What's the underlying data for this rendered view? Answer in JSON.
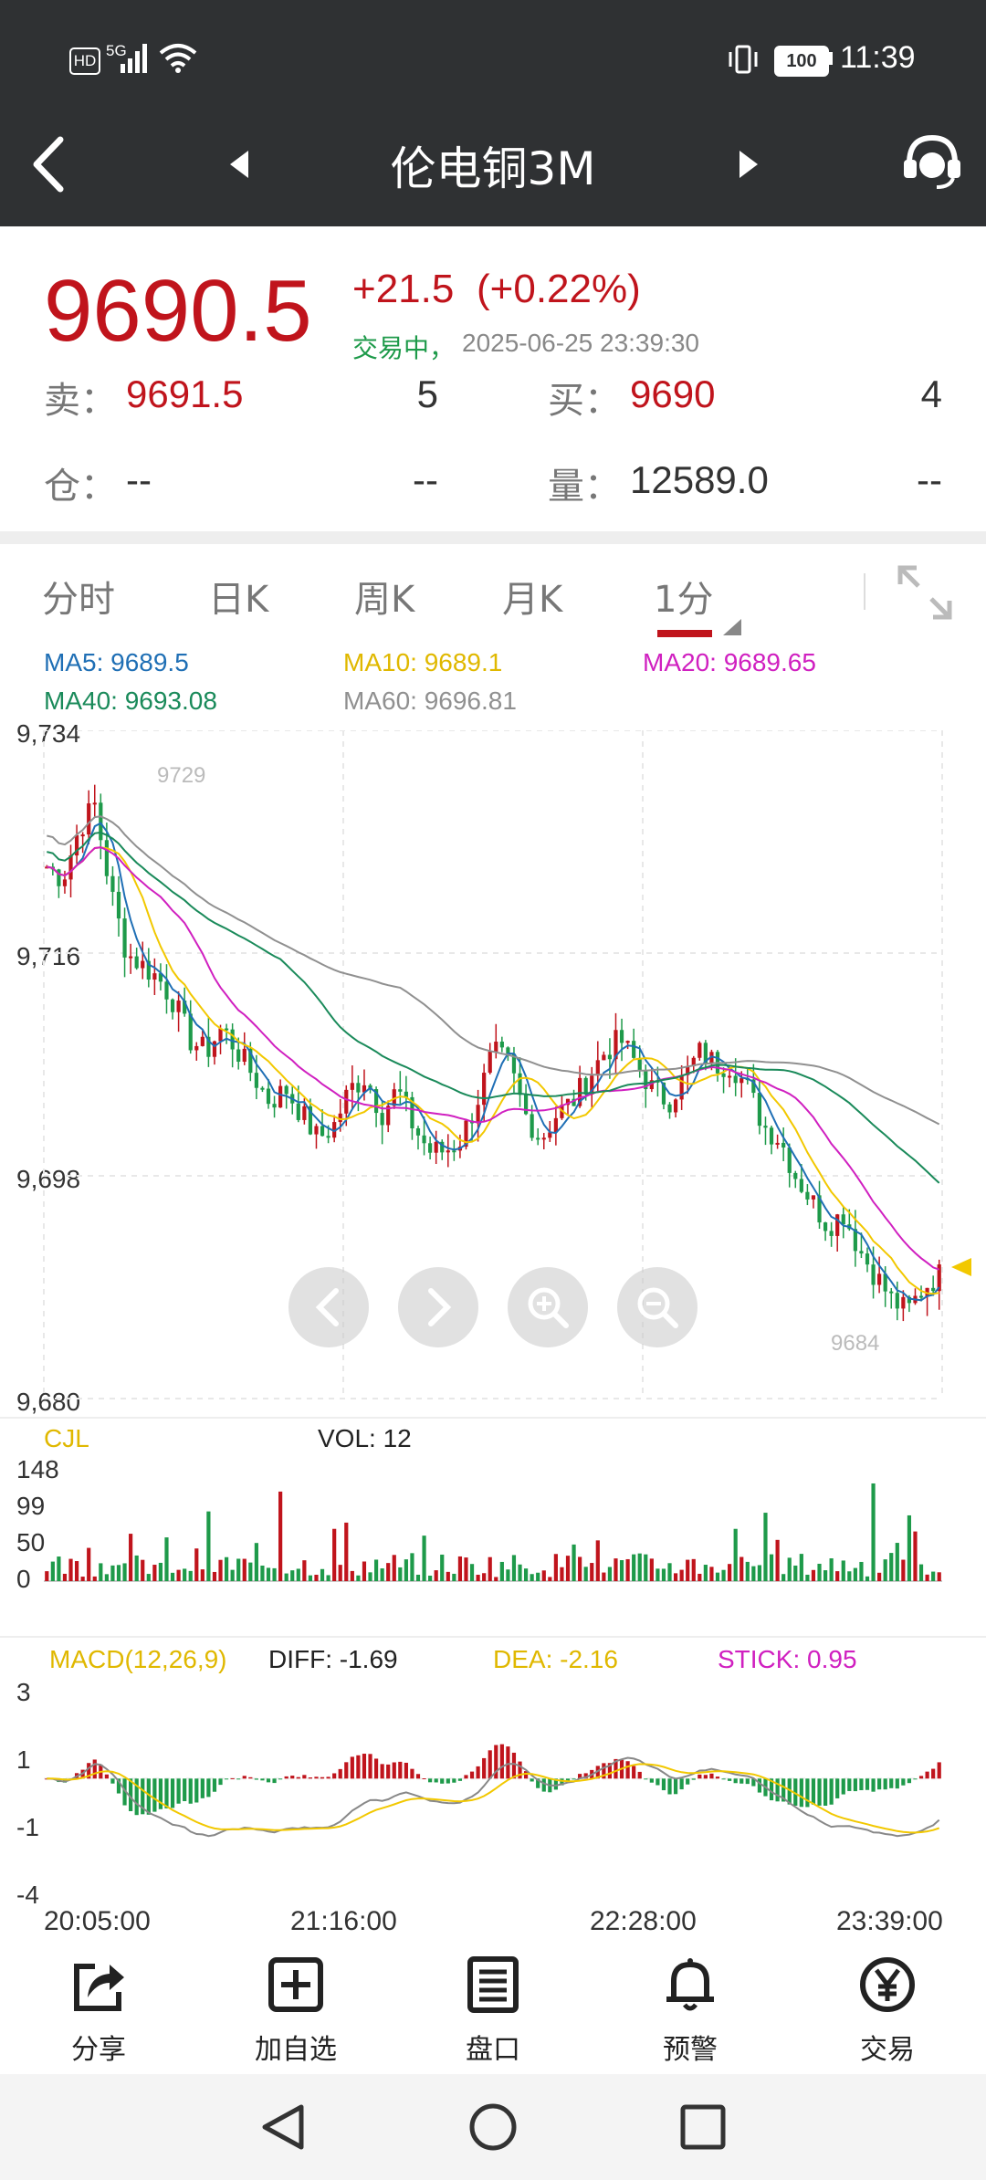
{
  "status_bar": {
    "hd": "HD",
    "net": "5G",
    "battery": "100",
    "time": "11:39"
  },
  "header": {
    "title": "伦电铜3M"
  },
  "quote": {
    "price": "9690.5",
    "change": "+21.5",
    "change_pct": "(+0.22%)",
    "status": "交易中，",
    "datetime": "2025-06-25 23:39:30",
    "sell_label": "卖：",
    "sell_price": "9691.5",
    "sell_qty": "5",
    "buy_label": "买：",
    "buy_price": "9690",
    "buy_qty": "4",
    "oi_label": "仓：",
    "oi_value": "--",
    "oi_change": "--",
    "vol_label": "量：",
    "vol_value": "12589.0",
    "vol_change": "--"
  },
  "tabs": [
    {
      "label": "分时"
    },
    {
      "label": "日K"
    },
    {
      "label": "周K"
    },
    {
      "label": "月K"
    },
    {
      "label": "1分"
    }
  ],
  "ma_legend": {
    "ma5": "MA5: 9689.5",
    "ma10": "MA10: 9689.1",
    "ma20": "MA20: 9689.65",
    "ma40": "MA40: 9693.08",
    "ma60": "MA60: 9696.81"
  },
  "colors": {
    "up": "#c0141c",
    "down": "#1e9a4a",
    "ma5": "#1f6fb5",
    "ma10": "#f2c800",
    "ma20": "#d020c0",
    "ma40": "#1a8a5a",
    "ma60": "#909090",
    "header_bg": "#2f3133"
  },
  "chart_data": [
    {
      "type": "candlestick",
      "y_ticks": [
        "9,734",
        "9,716",
        "9,698",
        "9,680"
      ],
      "ylim": [
        9680,
        9734
      ],
      "high_label": "9729",
      "low_label": "9684",
      "x_ticks": [
        "20:05:00",
        "21:16:00",
        "22:28:00",
        "23:39:00"
      ],
      "close_path": [
        9723,
        9722,
        9726,
        9728,
        9721,
        9716,
        9715,
        9714,
        9712,
        9709,
        9708,
        9710,
        9708,
        9706,
        9704,
        9705,
        9703,
        9701,
        9702,
        9705,
        9706,
        9703,
        9705,
        9702,
        9700,
        9700,
        9701,
        9704,
        9708,
        9707,
        9703,
        9701,
        9703,
        9704,
        9706,
        9708,
        9709,
        9707,
        9705,
        9704,
        9706,
        9708,
        9707,
        9707,
        9705,
        9702,
        9701,
        9698,
        9696,
        9694,
        9695,
        9692,
        9690,
        9688,
        9687,
        9689,
        9690
      ]
    },
    {
      "type": "bar",
      "title": "CJL",
      "vol_label": "VOL: 12",
      "y_ticks": [
        "148",
        "99",
        "50",
        "0"
      ],
      "ylim": [
        0,
        148
      ]
    },
    {
      "type": "bar",
      "title": "MACD(12,26,9)",
      "diff": "DIFF: -1.69",
      "dea": "DEA: -2.16",
      "stick": "STICK: 0.95",
      "y_ticks": [
        "3",
        "1",
        "-1",
        "-4"
      ],
      "ylim": [
        -4,
        3
      ]
    }
  ],
  "toolbar": [
    {
      "label": "分享",
      "icon": "share-icon"
    },
    {
      "label": "加自选",
      "icon": "add-favorite-icon"
    },
    {
      "label": "盘口",
      "icon": "order-book-icon"
    },
    {
      "label": "预警",
      "icon": "bell-icon"
    },
    {
      "label": "交易",
      "icon": "yen-trade-icon"
    }
  ]
}
